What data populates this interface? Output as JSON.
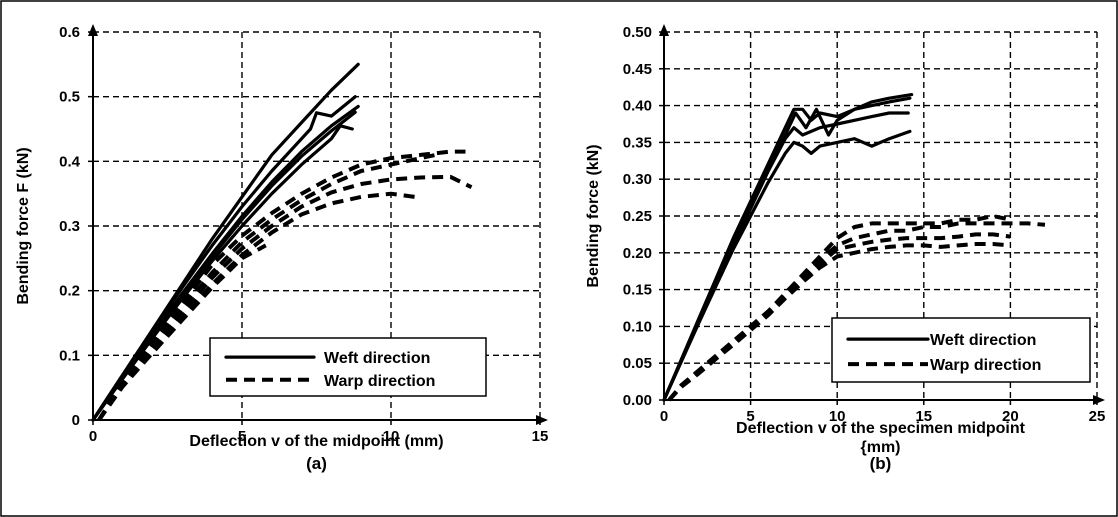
{
  "chart_data": [
    {
      "type": "line",
      "caption": "(a)",
      "title": "",
      "xlabel": "Deflection v of the midpoint (mm)",
      "ylabel": "Bending force F (kN)",
      "xlim": [
        0,
        15
      ],
      "ylim": [
        0,
        0.6
      ],
      "xticks": [
        0,
        5,
        10,
        15
      ],
      "yticks": [
        0,
        0.1,
        0.2,
        0.3,
        0.4,
        0.5,
        0.6
      ],
      "xtick_labels": [
        "0",
        "5",
        "10",
        "15"
      ],
      "ytick_labels": [
        "0",
        "0.1",
        "0.2",
        "0.3",
        "0.4",
        "0.5",
        "0.6"
      ],
      "grid": true,
      "legend_position": "lower-right",
      "legend": [
        {
          "label": "Weft direction",
          "style": "solid"
        },
        {
          "label": "Warp direction",
          "style": "dashed"
        }
      ],
      "series": [
        {
          "group": "Weft direction",
          "style": "solid",
          "x": [
            0,
            1,
            2,
            3,
            4,
            5,
            6,
            7,
            8,
            8.9
          ],
          "y": [
            0,
            0.07,
            0.14,
            0.21,
            0.28,
            0.345,
            0.41,
            0.46,
            0.51,
            0.55
          ]
        },
        {
          "group": "Weft direction",
          "style": "solid",
          "x": [
            0,
            1,
            2,
            3,
            4,
            5,
            6,
            7,
            7.3,
            7.5,
            8,
            8.8
          ],
          "y": [
            0,
            0.07,
            0.138,
            0.205,
            0.27,
            0.33,
            0.385,
            0.435,
            0.45,
            0.475,
            0.47,
            0.5
          ]
        },
        {
          "group": "Weft direction",
          "style": "solid",
          "x": [
            0,
            1,
            2,
            3,
            4,
            5,
            6,
            7,
            8,
            8.9
          ],
          "y": [
            0,
            0.066,
            0.132,
            0.196,
            0.257,
            0.315,
            0.368,
            0.415,
            0.455,
            0.485
          ]
        },
        {
          "group": "Weft direction",
          "style": "solid",
          "x": [
            0,
            1,
            2,
            3,
            4,
            5,
            6,
            7,
            8,
            8.8
          ],
          "y": [
            0,
            0.065,
            0.13,
            0.193,
            0.253,
            0.31,
            0.362,
            0.408,
            0.447,
            0.476
          ]
        },
        {
          "group": "Weft direction",
          "style": "solid",
          "x": [
            0,
            1,
            2,
            3,
            4,
            5,
            6,
            7,
            8,
            8.3,
            8.7
          ],
          "y": [
            0,
            0.064,
            0.127,
            0.188,
            0.246,
            0.3,
            0.35,
            0.395,
            0.435,
            0.455,
            0.45
          ]
        },
        {
          "group": "Warp direction",
          "style": "dashed",
          "x": [
            0.2,
            1,
            2,
            3,
            4,
            5,
            6,
            7,
            8,
            9,
            10,
            11,
            12,
            12.5
          ],
          "y": [
            0,
            0.06,
            0.12,
            0.18,
            0.24,
            0.285,
            0.32,
            0.35,
            0.375,
            0.395,
            0.405,
            0.41,
            0.415,
            0.415
          ]
        },
        {
          "group": "Warp direction",
          "style": "dashed",
          "x": [
            0.2,
            1,
            2,
            3,
            4,
            5,
            6,
            7,
            8,
            9,
            10,
            11,
            11.5
          ],
          "y": [
            0,
            0.058,
            0.116,
            0.173,
            0.228,
            0.275,
            0.31,
            0.34,
            0.365,
            0.385,
            0.395,
            0.405,
            0.41
          ]
        },
        {
          "group": "Warp direction",
          "style": "dashed",
          "x": [
            0.2,
            1,
            2,
            3,
            4,
            5,
            6,
            7,
            8,
            9,
            10,
            11,
            12,
            12.7
          ],
          "y": [
            0,
            0.056,
            0.112,
            0.167,
            0.22,
            0.265,
            0.3,
            0.33,
            0.352,
            0.365,
            0.372,
            0.375,
            0.376,
            0.36
          ]
        },
        {
          "group": "Warp direction",
          "style": "dashed",
          "x": [
            0.2,
            1,
            2,
            3,
            4,
            5,
            6,
            7,
            8,
            9,
            10,
            10.8
          ],
          "y": [
            0,
            0.054,
            0.107,
            0.16,
            0.21,
            0.255,
            0.29,
            0.318,
            0.335,
            0.345,
            0.35,
            0.345
          ]
        },
        {
          "group": "Warp direction",
          "style": "dashed",
          "x": [
            0.2,
            1,
            2,
            3,
            4,
            5,
            5.8
          ],
          "y": [
            0,
            0.052,
            0.104,
            0.155,
            0.205,
            0.25,
            0.27
          ]
        }
      ]
    },
    {
      "type": "line",
      "caption": "(b)",
      "title": "",
      "xlabel_lines": [
        "Deflection v of the specimen  midpoint",
        "{mm)"
      ],
      "ylabel": "Bending force (kN)",
      "xlim": [
        0,
        25
      ],
      "ylim": [
        0,
        0.5
      ],
      "xticks": [
        0,
        5,
        10,
        15,
        20,
        25
      ],
      "yticks": [
        0,
        0.05,
        0.1,
        0.15,
        0.2,
        0.25,
        0.3,
        0.35,
        0.4,
        0.45,
        0.5
      ],
      "xtick_labels": [
        "0",
        "5",
        "10",
        "15",
        "20",
        "25"
      ],
      "ytick_labels": [
        "0.00",
        "0.05",
        "0.10",
        "0.15",
        "0.20",
        "0.25",
        "0.30",
        "0.35",
        "0.40",
        "0.45",
        "0.50"
      ],
      "grid": true,
      "legend_position": "lower-right",
      "legend": [
        {
          "label": "Weft direction",
          "style": "solid"
        },
        {
          "label": "Warp direction",
          "style": "dashed"
        }
      ],
      "series": [
        {
          "group": "Weft direction",
          "style": "solid",
          "x": [
            0,
            1,
            2,
            3,
            4,
            5,
            6,
            7,
            7.5,
            8,
            8.5,
            9,
            10,
            11,
            12,
            13,
            14.3
          ],
          "y": [
            0,
            0.055,
            0.11,
            0.165,
            0.22,
            0.27,
            0.32,
            0.37,
            0.395,
            0.395,
            0.38,
            0.39,
            0.385,
            0.395,
            0.405,
            0.41,
            0.415
          ]
        },
        {
          "group": "Weft direction",
          "style": "solid",
          "x": [
            0,
            1,
            2,
            3,
            4,
            5,
            6,
            7,
            7.6,
            8.2,
            8.8,
            9.5,
            10,
            11,
            12,
            13,
            14.2
          ],
          "y": [
            0,
            0.054,
            0.108,
            0.162,
            0.215,
            0.265,
            0.315,
            0.36,
            0.39,
            0.37,
            0.395,
            0.36,
            0.38,
            0.395,
            0.4,
            0.405,
            0.41
          ]
        },
        {
          "group": "Weft direction",
          "style": "solid",
          "x": [
            0,
            1,
            2,
            3,
            4,
            5,
            6,
            7,
            7.5,
            8,
            9,
            10,
            11,
            12,
            13,
            14.1
          ],
          "y": [
            0,
            0.053,
            0.106,
            0.158,
            0.21,
            0.26,
            0.31,
            0.355,
            0.37,
            0.36,
            0.37,
            0.375,
            0.38,
            0.385,
            0.39,
            0.39
          ]
        },
        {
          "group": "Weft direction",
          "style": "solid",
          "x": [
            0,
            1,
            2,
            3,
            4,
            5,
            6,
            7,
            7.5,
            8,
            8.5,
            9,
            10,
            11,
            12,
            13,
            14.2
          ],
          "y": [
            0,
            0.052,
            0.104,
            0.155,
            0.205,
            0.25,
            0.295,
            0.335,
            0.35,
            0.345,
            0.335,
            0.345,
            0.35,
            0.355,
            0.345,
            0.355,
            0.365
          ]
        },
        {
          "group": "Warp direction",
          "style": "dashed",
          "x": [
            0.3,
            1,
            2,
            3,
            4,
            5,
            6,
            7,
            8,
            9,
            10,
            11,
            12,
            13,
            14,
            15,
            16,
            17,
            18,
            19,
            20
          ],
          "y": [
            0,
            0.02,
            0.04,
            0.06,
            0.08,
            0.1,
            0.12,
            0.145,
            0.17,
            0.195,
            0.22,
            0.235,
            0.24,
            0.24,
            0.24,
            0.24,
            0.24,
            0.245,
            0.245,
            0.25,
            0.245
          ]
        },
        {
          "group": "Warp direction",
          "style": "dashed",
          "x": [
            0.3,
            1,
            2,
            3,
            4,
            5,
            6,
            7,
            8,
            9,
            10,
            11,
            12,
            13,
            14,
            15,
            16,
            17,
            18,
            19,
            20,
            21,
            22
          ],
          "y": [
            0,
            0.02,
            0.04,
            0.06,
            0.08,
            0.1,
            0.12,
            0.142,
            0.165,
            0.19,
            0.21,
            0.22,
            0.225,
            0.23,
            0.23,
            0.235,
            0.235,
            0.24,
            0.24,
            0.24,
            0.24,
            0.24,
            0.238
          ]
        },
        {
          "group": "Warp direction",
          "style": "dashed",
          "x": [
            0.3,
            1,
            2,
            3,
            4,
            5,
            6,
            7,
            8,
            9,
            10,
            11,
            12,
            13,
            14,
            15,
            16,
            17,
            18,
            19,
            20
          ],
          "y": [
            0,
            0.019,
            0.038,
            0.058,
            0.078,
            0.098,
            0.118,
            0.14,
            0.162,
            0.185,
            0.205,
            0.21,
            0.215,
            0.218,
            0.22,
            0.22,
            0.22,
            0.222,
            0.225,
            0.225,
            0.222
          ]
        },
        {
          "group": "Warp direction",
          "style": "dashed",
          "x": [
            0.3,
            1,
            2,
            3,
            4,
            5,
            6,
            7,
            8,
            9,
            10,
            11,
            12,
            13,
            14,
            15,
            16,
            17,
            18,
            19,
            20
          ],
          "y": [
            0,
            0.018,
            0.036,
            0.056,
            0.075,
            0.095,
            0.115,
            0.138,
            0.16,
            0.18,
            0.195,
            0.2,
            0.205,
            0.208,
            0.21,
            0.21,
            0.208,
            0.21,
            0.212,
            0.212,
            0.21
          ]
        }
      ]
    }
  ]
}
